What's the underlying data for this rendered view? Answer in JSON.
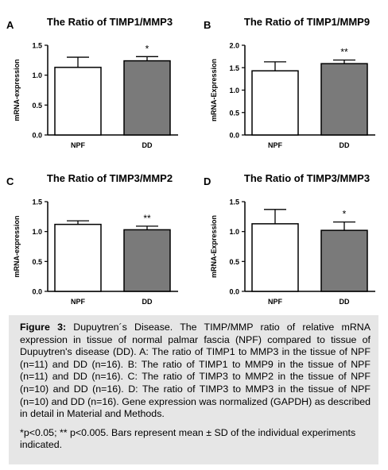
{
  "chart_data": [
    {
      "type": "bar",
      "panel": "A",
      "title": "The Ratio of TIMP1/MMP3",
      "ylabel": "mRNA-expression",
      "xlabel": "",
      "categories": [
        "NPF",
        "DD"
      ],
      "values": [
        1.13,
        1.24
      ],
      "errors": [
        0.17,
        0.07
      ],
      "significance": [
        "",
        "*"
      ],
      "bar_colors": [
        "#ffffff",
        "#7a7a7a"
      ],
      "ylim": [
        0,
        1.5
      ],
      "yticks": [
        0.0,
        0.5,
        1.0,
        1.5
      ],
      "ytick_labels": [
        "0.0",
        "0.5",
        "1.0",
        "1.5"
      ],
      "grid": false
    },
    {
      "type": "bar",
      "panel": "B",
      "title": "The Ratio of TIMP1/MMP9",
      "ylabel": "mRNA-Expression",
      "xlabel": "",
      "categories": [
        "NPF",
        "DD"
      ],
      "values": [
        1.43,
        1.59
      ],
      "errors": [
        0.2,
        0.08
      ],
      "significance": [
        "",
        "**"
      ],
      "bar_colors": [
        "#ffffff",
        "#7a7a7a"
      ],
      "ylim": [
        0,
        2.0
      ],
      "yticks": [
        0.0,
        0.5,
        1.0,
        1.5,
        2.0
      ],
      "ytick_labels": [
        "0.0",
        "0.5",
        "1.0",
        "1.5",
        "2.0"
      ],
      "grid": false
    },
    {
      "type": "bar",
      "panel": "C",
      "title": "The Ratio of TIMP3/MMP2",
      "ylabel": "mRNA-expression",
      "xlabel": "",
      "categories": [
        "NPF",
        "DD"
      ],
      "values": [
        1.12,
        1.03
      ],
      "errors": [
        0.06,
        0.06
      ],
      "significance": [
        "",
        "**"
      ],
      "bar_colors": [
        "#ffffff",
        "#7a7a7a"
      ],
      "ylim": [
        0,
        1.5
      ],
      "yticks": [
        0.0,
        0.5,
        1.0,
        1.5
      ],
      "ytick_labels": [
        "0.0",
        "0.5",
        "1.0",
        "1.5"
      ],
      "grid": false
    },
    {
      "type": "bar",
      "panel": "D",
      "title": "The Ratio of TIMP3/MMP3",
      "ylabel": "mRNA-Expression",
      "xlabel": "",
      "categories": [
        "NPF",
        "DD"
      ],
      "values": [
        1.13,
        1.02
      ],
      "errors": [
        0.24,
        0.14
      ],
      "significance": [
        "",
        "*"
      ],
      "bar_colors": [
        "#ffffff",
        "#7a7a7a"
      ],
      "ylim": [
        0,
        1.5
      ],
      "yticks": [
        0.0,
        0.5,
        1.0,
        1.5
      ],
      "ytick_labels": [
        "0.0",
        "0.5",
        "1.0",
        "1.5"
      ],
      "grid": false
    }
  ],
  "caption": {
    "label": "Figure 3:",
    "text": " Dupuytren´s Disease. The TIMP/MMP ratio of relative mRNA expression in tissue of normal palmar fascia (NPF) compared to tissue of Dupuytren's disease (DD). A: The ratio of TIMP1 to MMP3 in the tissue of NPF (n=11) and DD (n=16). B: The ratio of TIMP1 to MMP9 in the tissue of NPF (n=11) and DD (n=16). C: The ratio of TIMP3 to MMP2 in the tissue of NPF (n=10) and DD (n=16). D: The ratio of TIMP3 to MMP3 in the tissue of NPF (n=10) and DD (n=16). Gene expression was normalized (GAPDH) as described in detail in Material and Methods.",
    "note": "*p<0.05; ** p<0.005. Bars represent mean ± SD of the individual experiments indicated."
  },
  "colors": {
    "caption_background": "#e6e6e6",
    "dd_bar": "#7a7a7a",
    "npf_bar": "#ffffff",
    "axis": "#000000"
  }
}
